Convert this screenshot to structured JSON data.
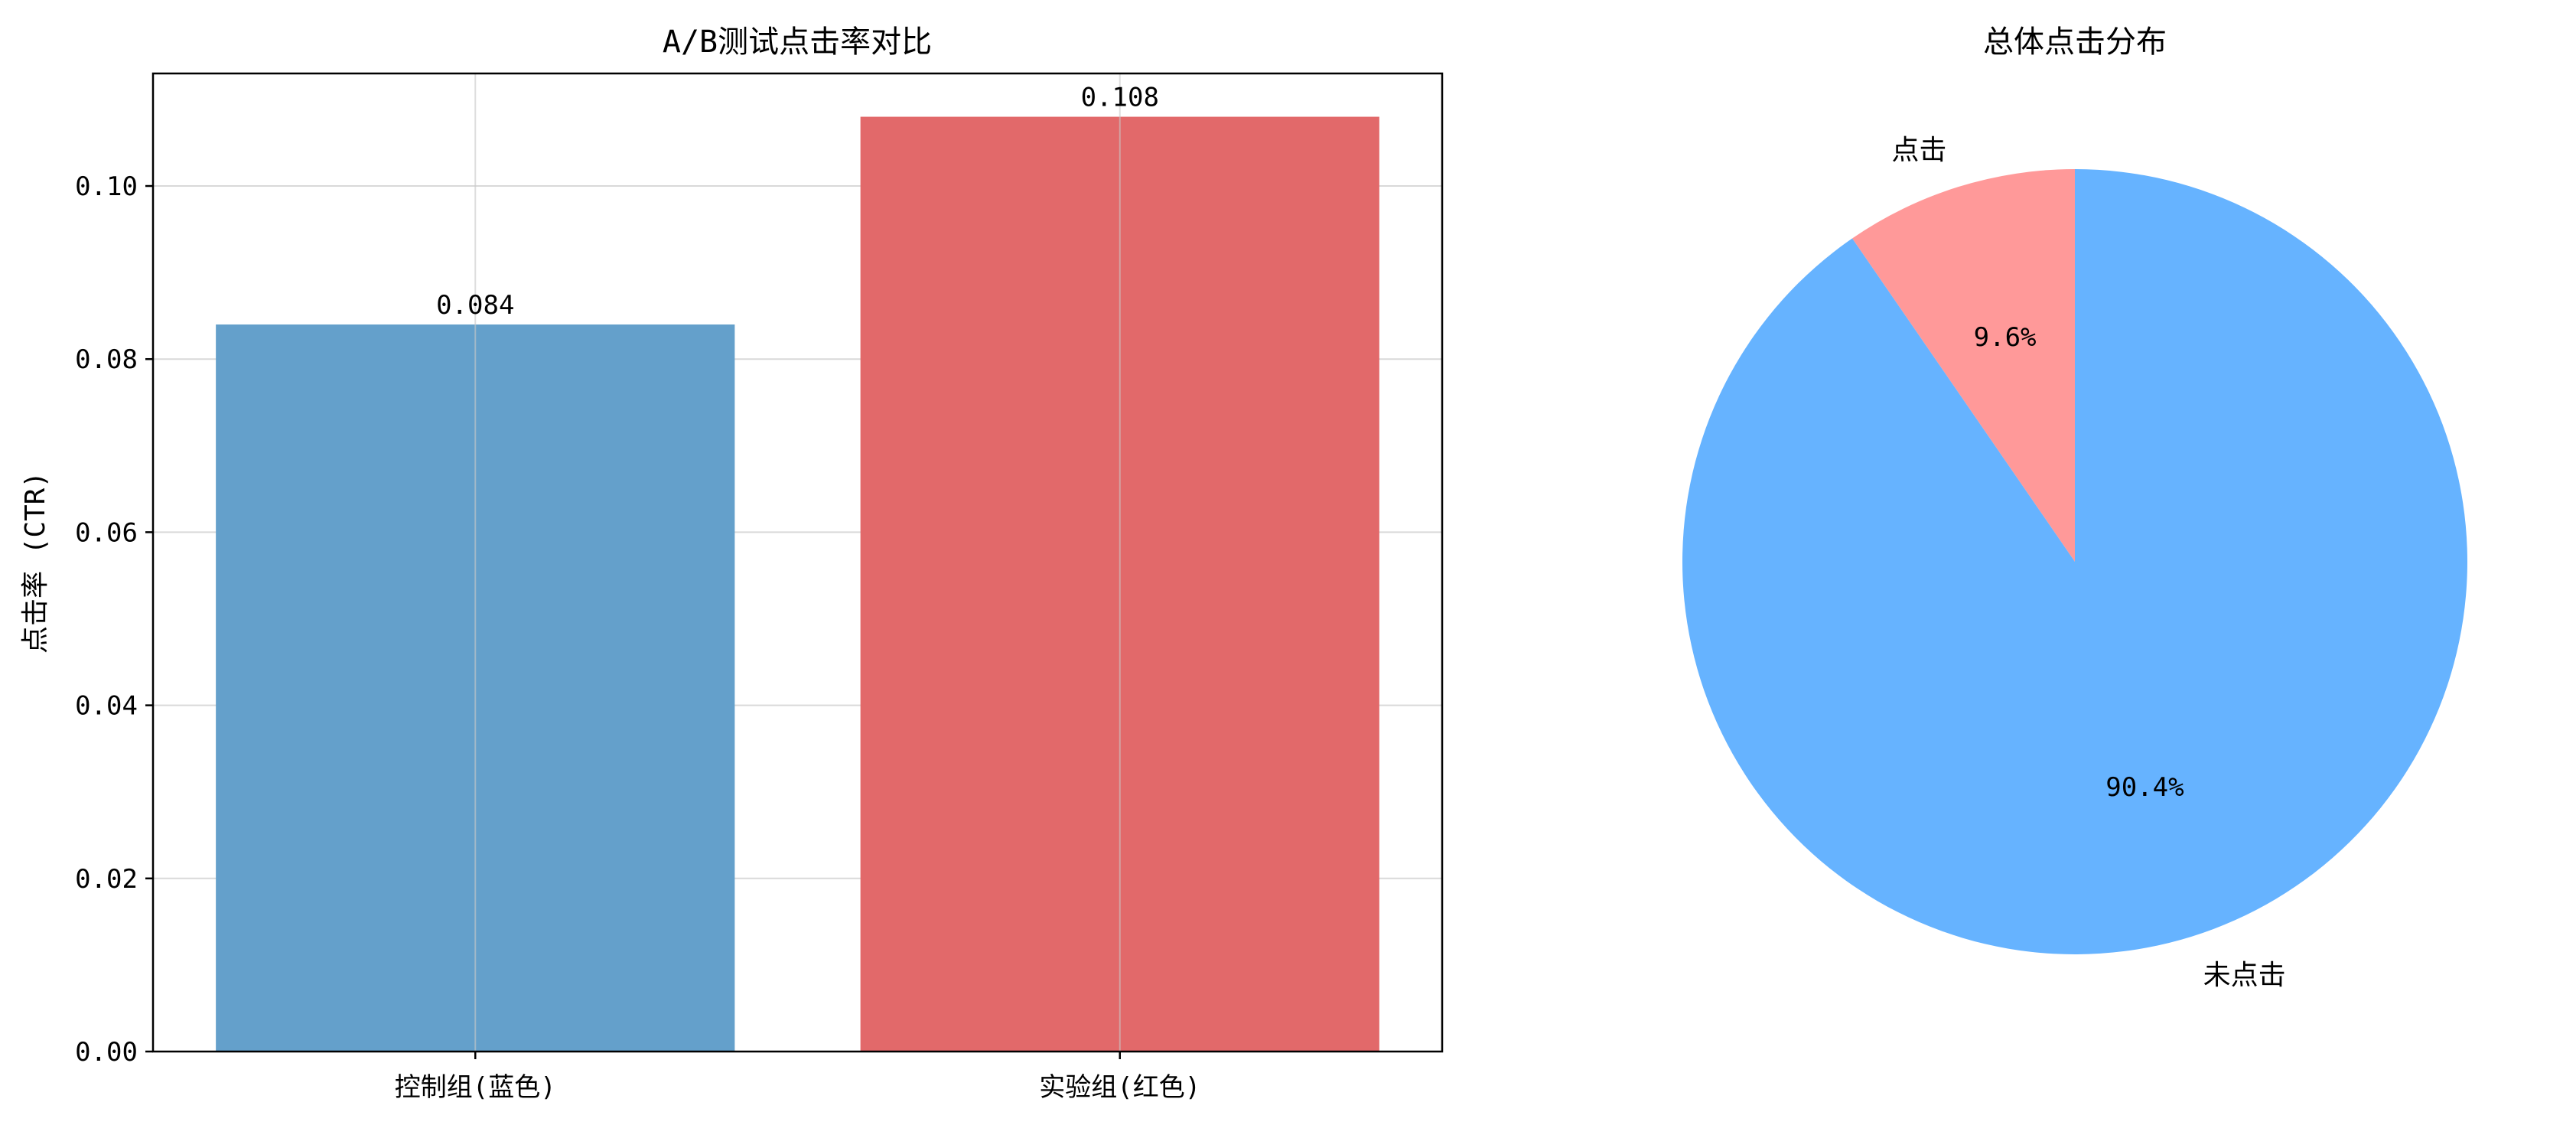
{
  "chart_data": [
    {
      "type": "bar",
      "title": "A/B测试点击率对比",
      "ylabel": "点击率 (CTR)",
      "xlabel": "",
      "categories": [
        "控制组(蓝色)",
        "实验组(红色)"
      ],
      "values": [
        0.084,
        0.108
      ],
      "value_labels": [
        "0.084",
        "0.108"
      ],
      "colors": [
        "#64a0cb",
        "#e2696a"
      ],
      "ylim": [
        0,
        0.113
      ],
      "yticks": [
        0.0,
        0.02,
        0.04,
        0.06,
        0.08,
        0.1
      ],
      "ytick_labels": [
        "0.00",
        "0.02",
        "0.04",
        "0.06",
        "0.08",
        "0.10"
      ],
      "grid": true
    },
    {
      "type": "pie",
      "title": "总体点击分布",
      "labels": [
        "点击",
        "未点击"
      ],
      "values": [
        9.6,
        90.4
      ],
      "percent_labels": [
        "9.6%",
        "90.4%"
      ],
      "colors": [
        "#ff9999",
        "#66b3ff"
      ],
      "start_angle": 90
    }
  ]
}
